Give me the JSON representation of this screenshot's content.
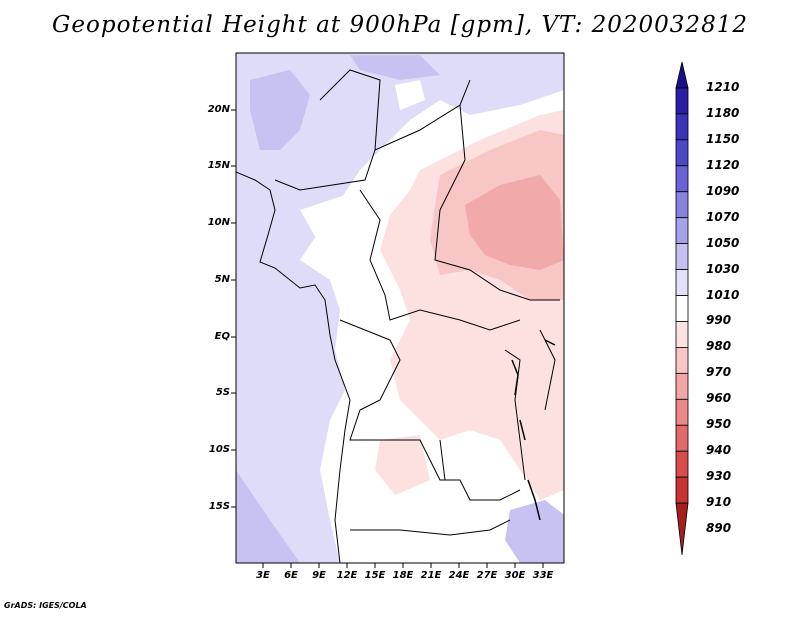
{
  "title": "Geopotential Height at 900hPa [gpm], VT: 2020032812",
  "credit": "GrADS: IGES/COLA",
  "lat_labels": [
    "20N",
    "15N",
    "10N",
    "5N",
    "EQ",
    "5S",
    "10S",
    "15S"
  ],
  "lon_labels": [
    "3E",
    "6E",
    "9E",
    "12E",
    "15E",
    "18E",
    "21E",
    "24E",
    "27E",
    "30E",
    "33E"
  ],
  "colorbar": {
    "labels": [
      "1210",
      "1180",
      "1150",
      "1120",
      "1090",
      "1070",
      "1050",
      "1030",
      "1010",
      "990",
      "980",
      "970",
      "960",
      "950",
      "940",
      "930",
      "910",
      "890"
    ],
    "colors": [
      "#1a0f8c",
      "#2b1fa6",
      "#3c33b8",
      "#4d47c9",
      "#6a62d6",
      "#8a82e0",
      "#a7a0ea",
      "#c4c0f2",
      "#e2e0fa",
      "#ffffff",
      "#fde2e2",
      "#f9c4c4",
      "#f3a6a6",
      "#ec8888",
      "#e26a6a",
      "#d84c4c",
      "#c83434",
      "#a81e1e"
    ]
  },
  "field_colors": {
    "c1030": "#c7c2f2",
    "c1010": "#dedcf8",
    "c990": "#ffffff",
    "c980": "#fde1e1",
    "c970": "#f9c6c6",
    "c960": "#f1a9a9"
  }
}
